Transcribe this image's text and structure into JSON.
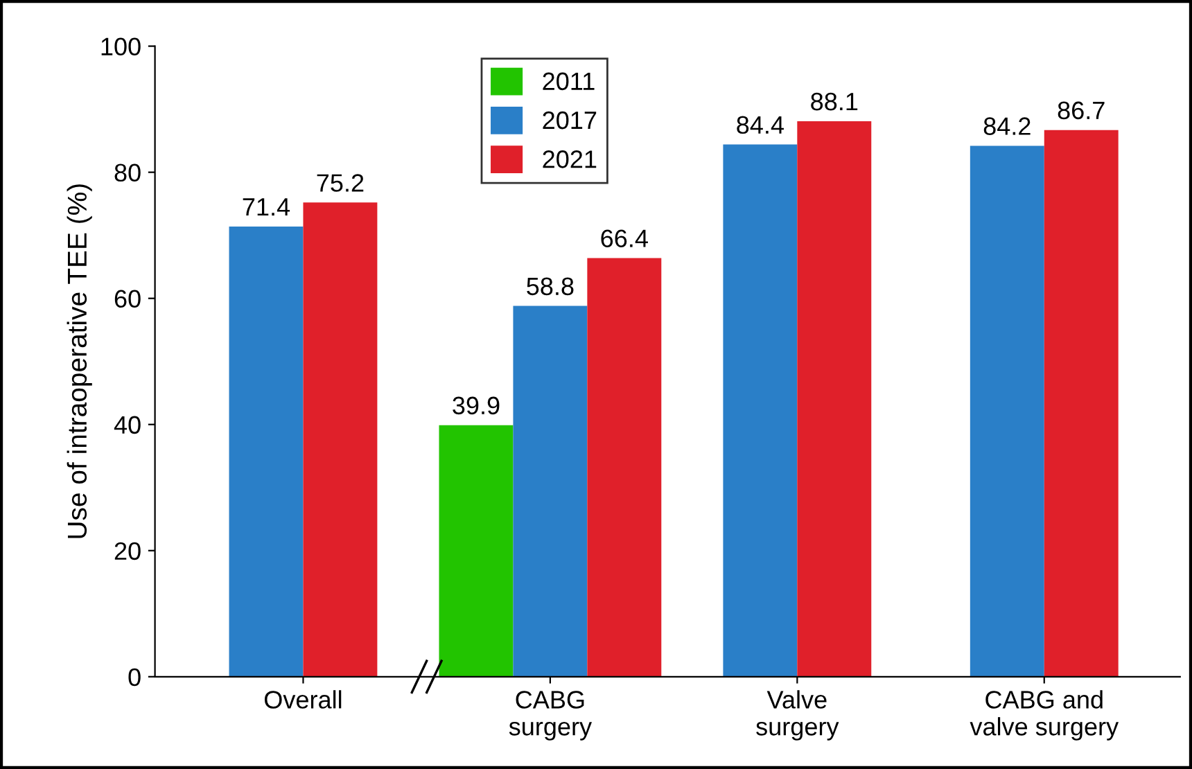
{
  "chart_data": {
    "type": "bar",
    "ylabel": "Use of intraoperative TEE (%)",
    "categories": [
      "Overall",
      "CABG\nsurgery",
      "Valve\nsurgery",
      "CABG and\nvalve surgery"
    ],
    "series": [
      {
        "name": "2011",
        "color": "#22c400",
        "values": [
          null,
          39.9,
          null,
          null
        ]
      },
      {
        "name": "2017",
        "color": "#2a7fc8",
        "values": [
          71.4,
          58.8,
          84.4,
          84.2
        ]
      },
      {
        "name": "2021",
        "color": "#e0202a",
        "values": [
          75.2,
          66.4,
          88.1,
          86.7
        ]
      }
    ],
    "ylim": [
      0,
      100
    ],
    "yticks": [
      0,
      20,
      40,
      60,
      80,
      100
    ],
    "grid": false,
    "legend": "top center",
    "data_labels": true
  }
}
